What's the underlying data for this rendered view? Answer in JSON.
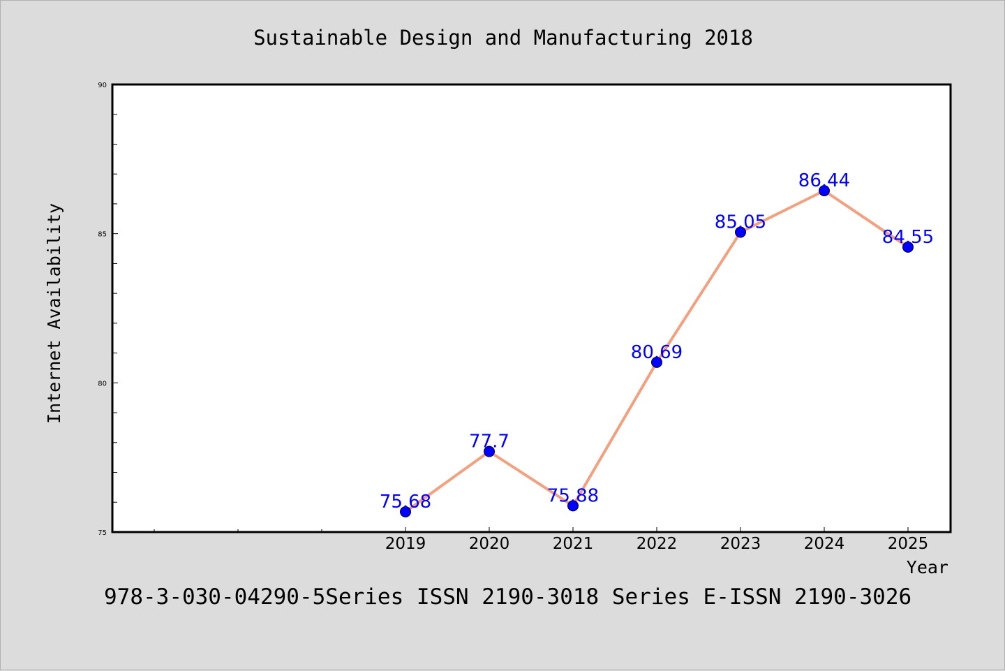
{
  "chart_data": {
    "type": "line",
    "title": "Sustainable Design and Manufacturing 2018",
    "xlabel": "Year",
    "ylabel": "Internet Availability",
    "categories": [
      "2019",
      "2020",
      "2021",
      "2022",
      "2023",
      "2024",
      "2025"
    ],
    "series": [
      {
        "name": "",
        "values": [
          75.68,
          77.7,
          75.88,
          80.69,
          85.05,
          86.44,
          84.55
        ],
        "data_labels": [
          "75.68",
          "77.7",
          "75.88",
          "80.69",
          "85.05",
          "86.44",
          "84.55"
        ]
      }
    ],
    "ylim": [
      75,
      90
    ],
    "y_ticks": [
      "75",
      "80",
      "85",
      "90"
    ],
    "grid": false,
    "line_color": "#f4a07e",
    "marker_color": "#0000ff",
    "label_color": "#0000ff"
  },
  "footer_text": "978-3-030-04290-5Series ISSN 2190-3018 Series E-ISSN 2190-3026"
}
